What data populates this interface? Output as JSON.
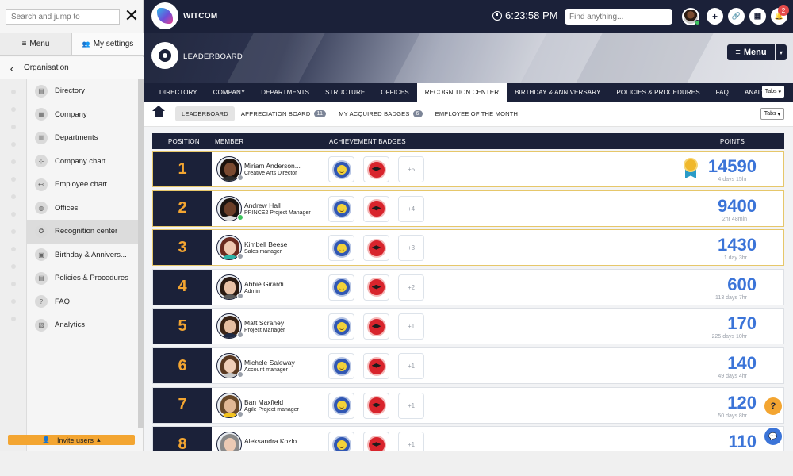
{
  "sidebar": {
    "search_placeholder": "Search and jump to",
    "close_glyph": "✕",
    "tabs": [
      {
        "icon": "≡",
        "label": "Menu"
      },
      {
        "icon": "👥",
        "label": "My settings"
      }
    ],
    "back_label": "Organisation",
    "items": [
      {
        "label": "Directory",
        "icon": "▤"
      },
      {
        "label": "Company",
        "icon": "▦"
      },
      {
        "label": "Departments",
        "icon": "▥"
      },
      {
        "label": "Company chart",
        "icon": "⊹"
      },
      {
        "label": "Employee chart",
        "icon": "⊷"
      },
      {
        "label": "Offices",
        "icon": "◍"
      },
      {
        "label": "Recognition center",
        "icon": "✪"
      },
      {
        "label": "Birthday & Annivers...",
        "icon": "▣"
      },
      {
        "label": "Policies & Procedures",
        "icon": "▤"
      },
      {
        "label": "FAQ",
        "icon": "?"
      },
      {
        "label": "Analytics",
        "icon": "▧"
      }
    ],
    "invite_label": "Invite users",
    "invite_icon": "👤+",
    "invite_caret": "▴"
  },
  "topbar": {
    "brand": "WITCOM",
    "time": "6:23:58 PM",
    "find_placeholder": "Find anything...",
    "find_icon": "🔍",
    "icons": [
      {
        "name": "plus-icon",
        "glyph": "+"
      },
      {
        "name": "link-icon",
        "glyph": "🔗"
      },
      {
        "name": "calendar-icon",
        "glyph": "▦"
      },
      {
        "name": "bell-icon",
        "glyph": "🔔"
      }
    ],
    "notification_count": "2"
  },
  "banner": {
    "title": "LEADERBOARD",
    "menu_label": "Menu",
    "menu_icon": "≡",
    "menu_caret": "▾"
  },
  "main_tabs": {
    "items": [
      "DIRECTORY",
      "COMPANY",
      "DEPARTMENTS",
      "STRUCTURE",
      "OFFICES",
      "RECOGNITION CENTER",
      "BIRTHDAY & ANNIVERSARY",
      "POLICIES & PROCEDURES",
      "FAQ",
      "ANALYTICS"
    ],
    "active_index": 5,
    "tabs_button": "Tabs",
    "tabs_caret": "▾"
  },
  "sub_tabs": {
    "items": [
      {
        "label": "LEADERBOARD",
        "count": ""
      },
      {
        "label": "APPRECIATION BOARD",
        "count": "11"
      },
      {
        "label": "MY ACQUIRED BADGES",
        "count": "6"
      },
      {
        "label": "EMPLOYEE OF THE MONTH",
        "count": ""
      }
    ],
    "active_index": 0,
    "tabs_button": "Tabs",
    "tabs_caret": "▾"
  },
  "leaderboard": {
    "headers": {
      "position": "POSITION",
      "member": "MEMBER",
      "badges": "ACHIEVEMENT BADGES",
      "points": "POINTS"
    },
    "rows": [
      {
        "position": "1",
        "name": "Miriam Anderson...",
        "role": "Creative Arts Director",
        "status": "#9aa0aa",
        "more": "+5",
        "points": "14590",
        "time": "4 days 15hr",
        "top": true,
        "ribbon": true,
        "skin": "#7a4a30",
        "hair": "#1c120c",
        "shirt": "#2b2b2b"
      },
      {
        "position": "2",
        "name": "Andrew Hall",
        "role": "PRINCE2 Project Manager",
        "status": "#3ec45f",
        "more": "+4",
        "points": "9400",
        "time": "2hr 48min",
        "top": true,
        "ribbon": false,
        "skin": "#6b3f28",
        "hair": "#1a1410",
        "shirt": "#dcdcdc"
      },
      {
        "position": "3",
        "name": "Kimbell Beese",
        "role": "Sales manager",
        "status": "#9aa0aa",
        "more": "+3",
        "points": "1430",
        "time": "1 day 3hr",
        "top": true,
        "ribbon": false,
        "skin": "#f0c8b0",
        "hair": "#6b2a1e",
        "shirt": "#2bb3a6"
      },
      {
        "position": "4",
        "name": "Abbie Girardi",
        "role": "Admin",
        "status": "#9aa0aa",
        "more": "+2",
        "points": "600",
        "time": "113 days 7hr",
        "top": false,
        "ribbon": false,
        "skin": "#e8c1a6",
        "hair": "#2a1a12",
        "shirt": "#5a5a5a"
      },
      {
        "position": "5",
        "name": "Matt Scraney",
        "role": "Project Manager",
        "status": "#9aa0aa",
        "more": "+1",
        "points": "170",
        "time": "225 days 10hr",
        "top": false,
        "ribbon": false,
        "skin": "#e6bfa2",
        "hair": "#3a2416",
        "shirt": "#1f2a44"
      },
      {
        "position": "6",
        "name": "Michele Saleway",
        "role": "Account manager",
        "status": "#9aa0aa",
        "more": "+1",
        "points": "140",
        "time": "49 days 4hr",
        "top": false,
        "ribbon": false,
        "skin": "#efcfb8",
        "hair": "#5a3a22",
        "shirt": "#c9c9c9"
      },
      {
        "position": "7",
        "name": "Ban Maxfield",
        "role": "Agile Project manager",
        "status": "#9aa0aa",
        "more": "+1",
        "points": "120",
        "time": "50 days 8hr",
        "top": false,
        "ribbon": false,
        "skin": "#e2b895",
        "hair": "#6a4a2a",
        "shirt": "#f2c21e"
      },
      {
        "position": "8",
        "name": "Aleksandra Kozlo...",
        "role": "",
        "status": "#9aa0aa",
        "more": "+1",
        "points": "110",
        "time": "",
        "top": false,
        "ribbon": false,
        "skin": "#eccab4",
        "hair": "#8a8a8a",
        "shirt": "#cfcfcf"
      }
    ]
  },
  "floating": {
    "help": "?",
    "chat": "💬"
  },
  "colors": {
    "navy": "#1b2139",
    "accent_orange": "#f3a531",
    "points_blue": "#3b74d8",
    "top_row_border": "#e6c76a"
  }
}
